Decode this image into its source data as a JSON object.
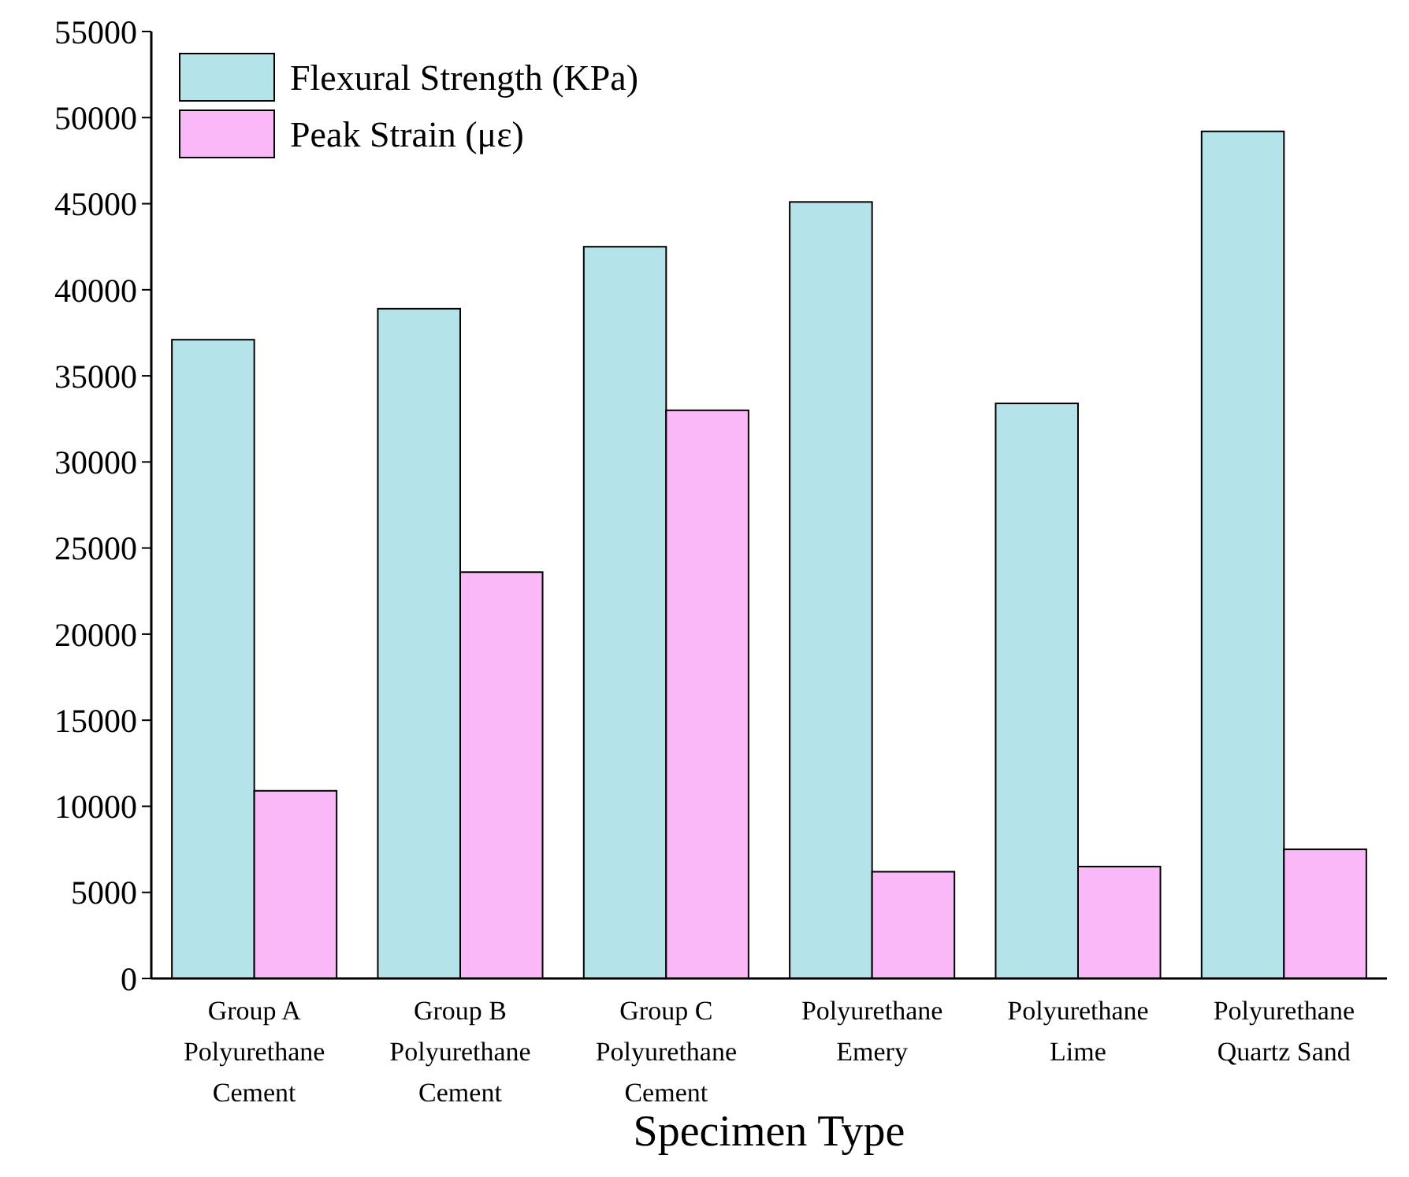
{
  "chart_data": {
    "type": "bar",
    "xlabel": "Specimen Type",
    "categories": [
      "Group A\nPolyurethane\nCement",
      "Group B\nPolyurethane\nCement",
      "Group C\nPolyurethane\nCement",
      "Polyurethane\nEmery",
      "Polyurethane\nLime",
      "Polyurethane\nQuartz Sand"
    ],
    "series": [
      {
        "name": "Flexural Strength (KPa)",
        "color": "#b4e4e9",
        "values": [
          37100,
          38900,
          42500,
          45100,
          33400,
          49200
        ]
      },
      {
        "name": "Peak Strain (με)",
        "color": "#fbb8f8",
        "values": [
          10900,
          23600,
          33000,
          6200,
          6500,
          7500
        ]
      }
    ],
    "ylim": [
      0,
      55000
    ],
    "yticks": [
      0,
      5000,
      10000,
      15000,
      20000,
      25000,
      30000,
      35000,
      40000,
      45000,
      50000,
      55000
    ],
    "grid": false,
    "legend": "top left"
  }
}
